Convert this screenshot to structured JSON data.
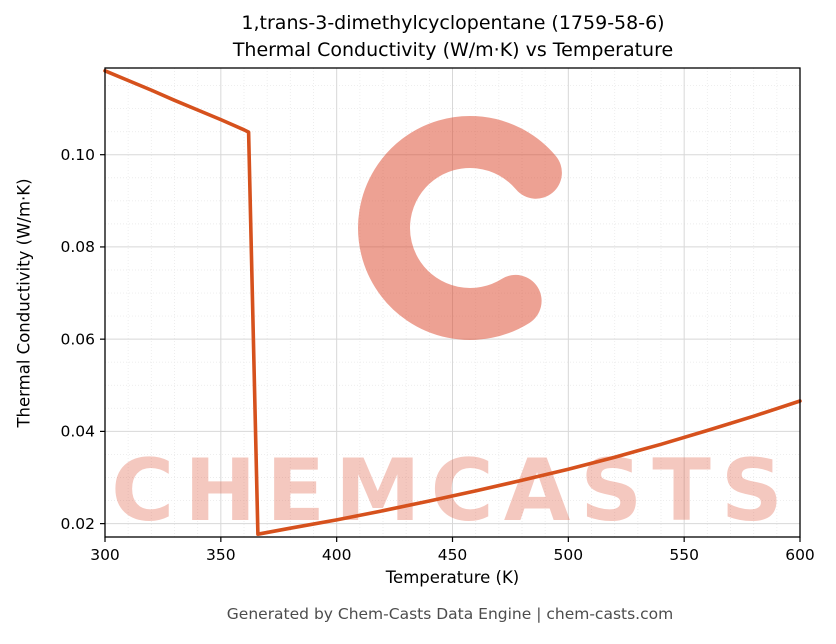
{
  "chart_data": {
    "type": "line",
    "title_line1": "1,trans-3-dimethylcyclopentane (1759-58-6)",
    "title_line2": "Thermal Conductivity (W/m·K) vs Temperature",
    "xlabel": "Temperature (K)",
    "ylabel": "Thermal Conductivity (W/m·K)",
    "xlim": [
      300,
      600
    ],
    "ylim": [
      0.0171,
      0.1188
    ],
    "x_ticks": [
      300,
      350,
      400,
      450,
      500,
      550,
      600
    ],
    "y_ticks": [
      0.02,
      0.04,
      0.06,
      0.08,
      0.1
    ],
    "x_minor_step": 10,
    "y_minor_step": 0.005,
    "line_color": "#d6511d",
    "grid": true,
    "legend": "none",
    "series": [
      {
        "name": "thermal_conductivity",
        "points": [
          [
            300,
            0.1182
          ],
          [
            310,
            0.1161
          ],
          [
            320,
            0.114
          ],
          [
            330,
            0.1118
          ],
          [
            340,
            0.1097
          ],
          [
            350,
            0.1076
          ],
          [
            360,
            0.1054
          ],
          [
            362,
            0.1049
          ],
          [
            366,
            0.0177
          ],
          [
            380,
            0.019
          ],
          [
            400,
            0.0208
          ],
          [
            420,
            0.0228
          ],
          [
            440,
            0.0249
          ],
          [
            460,
            0.0271
          ],
          [
            480,
            0.0294
          ],
          [
            500,
            0.0318
          ],
          [
            520,
            0.0344
          ],
          [
            540,
            0.0372
          ],
          [
            560,
            0.0402
          ],
          [
            580,
            0.0433
          ],
          [
            600,
            0.0466
          ]
        ]
      }
    ],
    "watermark": {
      "text": "CHEMCASTS",
      "color": "#dd4b30",
      "text_opacity": 0.3,
      "logo_opacity": 0.52
    },
    "footer": "Generated by Chem-Casts Data Engine | chem-casts.com"
  }
}
